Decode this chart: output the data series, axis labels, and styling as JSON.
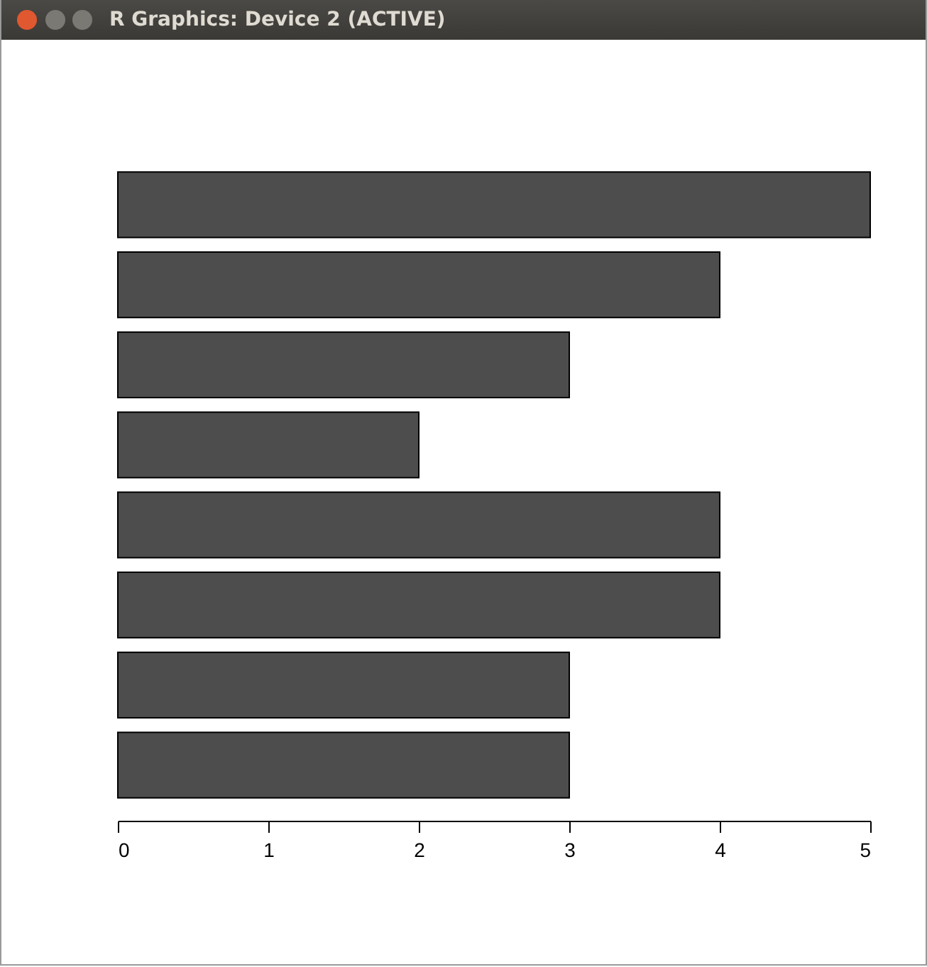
{
  "chart_data": {
    "type": "bar",
    "title": "R Graphics: Device 2 (ACTIVE)",
    "orientation": "horizontal",
    "categories": [
      null,
      null,
      null,
      null,
      null,
      null,
      null,
      null
    ],
    "values": [
      5,
      4,
      3,
      2,
      4,
      4,
      3,
      3
    ],
    "color": "#4d4d4d",
    "xlim": [
      0,
      5
    ],
    "xticks": [
      0,
      1,
      2,
      3,
      4,
      5
    ],
    "tick_labels": "x",
    "grid": false
  }
}
